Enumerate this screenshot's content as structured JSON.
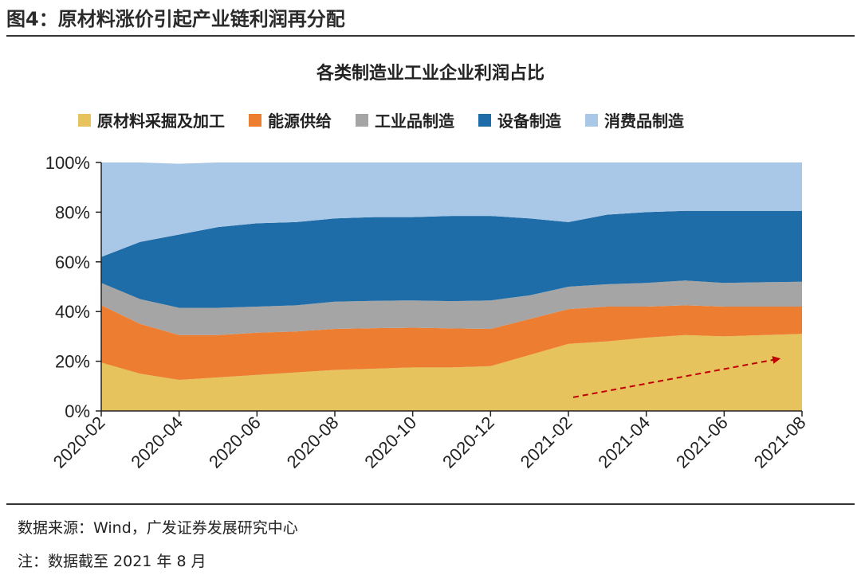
{
  "figure": {
    "title": "图4：原材料涨价引起产业链利润再分配",
    "source": "数据来源：Wind，广发证券发展研究中心",
    "note": "注：数据截至 2021 年 8 月"
  },
  "colors": {
    "raw": "#E6C35C",
    "energy": "#ED7D31",
    "industrial": "#A5A5A5",
    "equipment": "#1F6DA8",
    "consumer": "#A9C7E6",
    "arrow": "#C00000"
  },
  "chart_data": {
    "type": "area",
    "stacked": true,
    "title": "各类制造业工业企业利润占比",
    "xlabel": "",
    "ylabel": "",
    "ylim": [
      0,
      100
    ],
    "yticks": [
      "0%",
      "20%",
      "40%",
      "60%",
      "80%",
      "100%"
    ],
    "ytick_values": [
      0,
      20,
      40,
      60,
      80,
      100
    ],
    "x": [
      "2020-02",
      "2020-03",
      "2020-04",
      "2020-05",
      "2020-06",
      "2020-07",
      "2020-08",
      "2020-09",
      "2020-10",
      "2020-11",
      "2020-12",
      "2021-01",
      "2021-02",
      "2021-03",
      "2021-04",
      "2021-05",
      "2021-06",
      "2021-07",
      "2021-08"
    ],
    "xtick_labels": [
      "2020-02",
      "2020-04",
      "2020-06",
      "2020-08",
      "2020-10",
      "2020-12",
      "2021-02",
      "2021-04",
      "2021-06",
      "2021-08"
    ],
    "legend_position": "top",
    "series": [
      {
        "name": "原材料采掘及加工",
        "color_key": "raw",
        "values": [
          19.5,
          15,
          12.5,
          13.5,
          14.5,
          15.5,
          16.5,
          17,
          17.5,
          17.5,
          18,
          22.5,
          27,
          28,
          29.5,
          30.5,
          30,
          30.5,
          31
        ]
      },
      {
        "name": "能源供给",
        "color_key": "energy",
        "values": [
          23,
          20,
          18,
          17,
          17,
          16.5,
          16.5,
          16.3,
          16,
          15.7,
          15,
          14.5,
          14,
          14,
          12.5,
          12,
          12,
          11.5,
          11
        ]
      },
      {
        "name": "工业品制造",
        "color_key": "industrial",
        "values": [
          9,
          10,
          11,
          11,
          10.5,
          10.5,
          11,
          11,
          11,
          11,
          11.5,
          9.5,
          9,
          9,
          9.5,
          10,
          9.5,
          9.8,
          10
        ]
      },
      {
        "name": "设备制造",
        "color_key": "equipment",
        "values": [
          10.5,
          23,
          29.5,
          32.5,
          33.5,
          33.5,
          33.5,
          33.7,
          33.5,
          34.3,
          34,
          31,
          26,
          28,
          28.5,
          28,
          29,
          28.7,
          28.5
        ]
      },
      {
        "name": "消费品制造",
        "color_key": "consumer",
        "values": [
          38,
          32,
          28.5,
          26,
          24.5,
          24,
          22.5,
          22,
          22,
          21.5,
          21.5,
          22.5,
          24,
          21,
          20,
          19.5,
          19.5,
          19.5,
          19.5
        ]
      }
    ],
    "annotations": [
      {
        "type": "arrow",
        "style": "dashed",
        "from": {
          "x": "2021-02",
          "y": 5.5
        },
        "to": {
          "x": "2021-07",
          "y": 21
        }
      }
    ]
  }
}
